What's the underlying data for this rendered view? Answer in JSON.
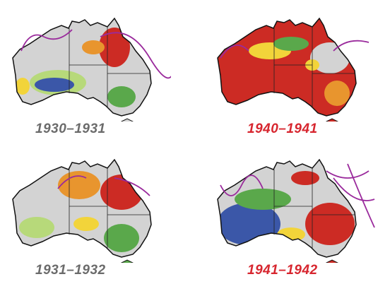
{
  "colors": {
    "gray": "#d3d3d3",
    "green_light": "#b7d97a",
    "green": "#5aa84b",
    "blue": "#3b57a8",
    "yellow": "#f2d43a",
    "orange": "#e8952e",
    "red": "#cc2b24",
    "purple": "#9a2a9c",
    "caption_gray": "#6b6b6b",
    "caption_red": "#d7262f"
  },
  "panels": [
    {
      "label": "1930–1931",
      "label_color": "#6b6b6b"
    },
    {
      "label": "1940–1941",
      "label_color": "#d7262f"
    },
    {
      "label": "1931–1932",
      "label_color": "#6b6b6b"
    },
    {
      "label": "1941–1942",
      "label_color": "#d7262f"
    }
  ]
}
